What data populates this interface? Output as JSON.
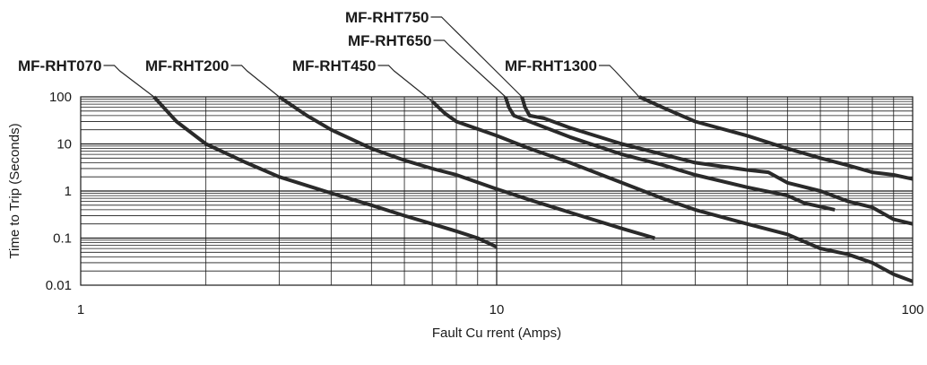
{
  "chart_data": {
    "type": "line",
    "title": "",
    "xlabel": "Fault Cu rrent (Amps)",
    "ylabel": "Time to Trip (Seconds)",
    "x_scale": "log",
    "y_scale": "log",
    "xlim": [
      1,
      100
    ],
    "ylim": [
      0.01,
      100
    ],
    "grid": true,
    "x_ticks": [
      {
        "value": 1,
        "label": "1"
      },
      {
        "value": 10,
        "label": "10"
      },
      {
        "value": 100,
        "label": "100"
      }
    ],
    "y_ticks": [
      {
        "value": 100,
        "label": "100"
      },
      {
        "value": 10,
        "label": "10"
      },
      {
        "value": 1,
        "label": "1"
      },
      {
        "value": 0.1,
        "label": "0.1"
      },
      {
        "value": 0.01,
        "label": "0.01"
      }
    ],
    "series": [
      {
        "name": "MF-RHT070",
        "label": "MF-RHT070",
        "x": [
          1.5,
          1.7,
          2.0,
          2.5,
          3.0,
          4.0,
          5.0,
          6.0,
          7.0,
          8.0,
          9.0,
          10.0
        ],
        "y": [
          100,
          30,
          10,
          4,
          2,
          0.9,
          0.5,
          0.3,
          0.2,
          0.14,
          0.1,
          0.065
        ]
      },
      {
        "name": "MF-RHT200",
        "label": "MF-RHT200",
        "x": [
          3.0,
          3.5,
          4.0,
          5.0,
          6.0,
          7.0,
          8.0,
          10.0,
          12.0,
          15.0,
          20.0,
          24.0
        ],
        "y": [
          100,
          40,
          20,
          8,
          4.5,
          3,
          2.2,
          1.1,
          0.65,
          0.35,
          0.16,
          0.1
        ]
      },
      {
        "name": "MF-RHT450",
        "label": "MF-RHT450",
        "x": [
          7.0,
          7.5,
          8.0,
          10.0,
          12.0,
          15.0,
          20.0,
          25.0,
          30.0,
          40.0,
          50.0,
          60.0,
          70.0,
          80.0,
          90.0,
          100.0
        ],
        "y": [
          80,
          45,
          30,
          15,
          8,
          4,
          1.5,
          0.7,
          0.4,
          0.2,
          0.12,
          0.06,
          0.045,
          0.03,
          0.017,
          0.012
        ]
      },
      {
        "name": "MF-RHT650",
        "label": "MF-RHT650",
        "x": [
          10.5,
          10.7,
          11.0,
          12.0,
          15.0,
          20.0,
          25.0,
          30.0,
          40.0,
          50.0,
          55.0,
          65.0
        ],
        "y": [
          100,
          60,
          40,
          30,
          14,
          6,
          3.6,
          2.2,
          1.2,
          0.8,
          0.55,
          0.4
        ]
      },
      {
        "name": "MF-RHT750",
        "label": "MF-RHT750",
        "x": [
          11.5,
          11.7,
          12.0,
          13.0,
          15.0,
          20.0,
          30.0,
          40.0,
          45.0,
          50.0,
          60.0,
          70.0,
          80.0,
          90.0,
          100.0
        ],
        "y": [
          100,
          60,
          40,
          35,
          22,
          10,
          4,
          2.8,
          2.5,
          1.5,
          1,
          0.6,
          0.45,
          0.25,
          0.2
        ]
      },
      {
        "name": "MF-RHT1300",
        "label": "MF-RHT1300",
        "x": [
          22.0,
          25.0,
          30.0,
          40.0,
          50.0,
          60.0,
          70.0,
          80.0,
          90.0,
          100.0
        ],
        "y": [
          100,
          60,
          30,
          15,
          8,
          5,
          3.5,
          2.5,
          2.2,
          1.8
        ]
      }
    ],
    "line_color": "#2a2a2a",
    "grid_color": "#1a1a1a"
  }
}
